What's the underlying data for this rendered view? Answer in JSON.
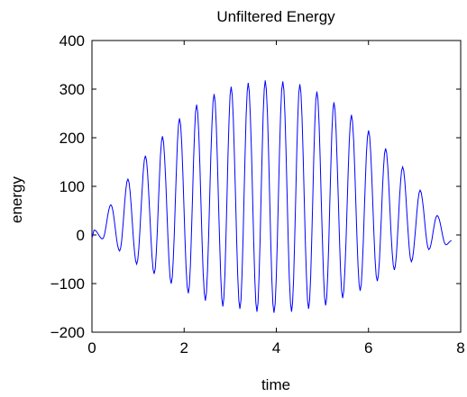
{
  "chart_data": {
    "type": "line",
    "title": "Unfiltered Energy",
    "xlabel": "time",
    "ylabel": "energy",
    "xlim": [
      0,
      8
    ],
    "ylim": [
      -200,
      400
    ],
    "xticks": [
      0,
      2,
      4,
      6,
      8
    ],
    "yticks": [
      -200,
      -100,
      0,
      100,
      200,
      300,
      400
    ],
    "grid": false,
    "series": [
      {
        "color": "#0000ff",
        "peaks": [
          {
            "x": 0.05,
            "y": 10
          },
          {
            "x": 0.41,
            "y": 62
          },
          {
            "x": 0.78,
            "y": 115
          },
          {
            "x": 1.16,
            "y": 163
          },
          {
            "x": 1.53,
            "y": 203
          },
          {
            "x": 1.9,
            "y": 240
          },
          {
            "x": 2.27,
            "y": 268
          },
          {
            "x": 2.65,
            "y": 290
          },
          {
            "x": 3.02,
            "y": 305
          },
          {
            "x": 3.39,
            "y": 313
          },
          {
            "x": 3.76,
            "y": 318
          },
          {
            "x": 4.14,
            "y": 316
          },
          {
            "x": 4.51,
            "y": 310
          },
          {
            "x": 4.88,
            "y": 295
          },
          {
            "x": 5.25,
            "y": 273
          },
          {
            "x": 5.63,
            "y": 247
          },
          {
            "x": 6.0,
            "y": 215
          },
          {
            "x": 6.37,
            "y": 178
          },
          {
            "x": 6.74,
            "y": 140
          },
          {
            "x": 7.12,
            "y": 92
          },
          {
            "x": 7.49,
            "y": 40
          }
        ],
        "troughs": [
          {
            "x": 0.0,
            "y": -5
          },
          {
            "x": 0.23,
            "y": -8
          },
          {
            "x": 0.6,
            "y": -33
          },
          {
            "x": 0.97,
            "y": -60
          },
          {
            "x": 1.35,
            "y": -80
          },
          {
            "x": 1.72,
            "y": -100
          },
          {
            "x": 2.09,
            "y": -120
          },
          {
            "x": 2.46,
            "y": -135
          },
          {
            "x": 2.84,
            "y": -147
          },
          {
            "x": 3.21,
            "y": -152
          },
          {
            "x": 3.58,
            "y": -158
          },
          {
            "x": 3.95,
            "y": -160
          },
          {
            "x": 4.33,
            "y": -158
          },
          {
            "x": 4.7,
            "y": -152
          },
          {
            "x": 5.07,
            "y": -145
          },
          {
            "x": 5.44,
            "y": -130
          },
          {
            "x": 5.82,
            "y": -115
          },
          {
            "x": 6.19,
            "y": -95
          },
          {
            "x": 6.56,
            "y": -72
          },
          {
            "x": 6.93,
            "y": -55
          },
          {
            "x": 7.31,
            "y": -30
          },
          {
            "x": 7.68,
            "y": -20
          },
          {
            "x": 7.8,
            "y": -12
          }
        ]
      }
    ]
  }
}
